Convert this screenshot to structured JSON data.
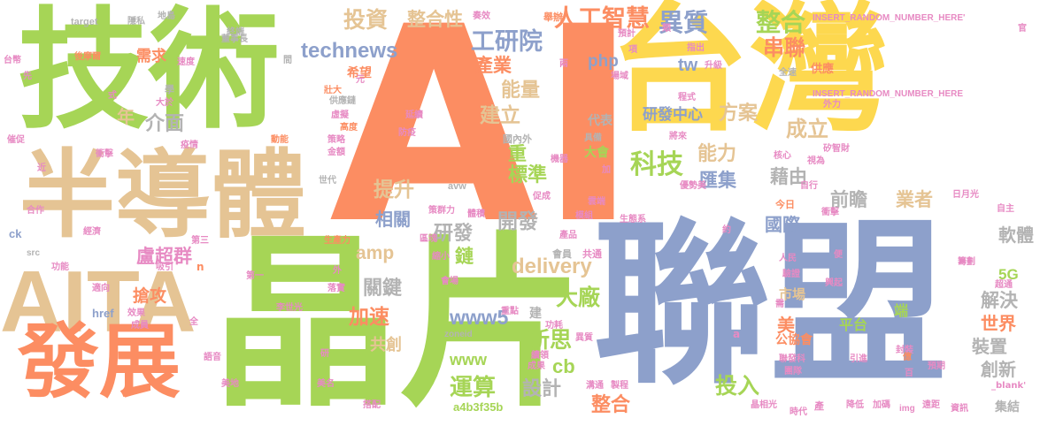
{
  "colors": {
    "green": "#a6d556",
    "orange": "#fc8d62",
    "yellow": "#fdd84f",
    "blue": "#8da0cb",
    "tan": "#e5c494",
    "pink": "#e78ac3",
    "grey": "#b3b3b3"
  },
  "words": [
    {
      "text": "AI",
      "color": "orange"
    },
    {
      "text": "台灣",
      "color": "yellow"
    },
    {
      "text": "聯盟",
      "color": "blue"
    },
    {
      "text": "技術",
      "color": "green"
    },
    {
      "text": "晶片",
      "color": "green"
    },
    {
      "text": "半導體",
      "color": "tan"
    },
    {
      "text": "AITA",
      "color": "tan"
    },
    {
      "text": "發展",
      "color": "orange"
    },
    {
      "text": "投資",
      "color": "tan"
    },
    {
      "text": "整合性",
      "color": "tan"
    },
    {
      "text": "人工智慧",
      "color": "orange"
    },
    {
      "text": "異質",
      "color": "blue"
    },
    {
      "text": "整合",
      "color": "green"
    },
    {
      "text": "工研院",
      "color": "blue"
    },
    {
      "text": "串聯",
      "color": "orange"
    },
    {
      "text": "technews",
      "color": "blue"
    },
    {
      "text": "需求",
      "color": "orange"
    },
    {
      "text": "產業",
      "color": "orange"
    },
    {
      "text": "php",
      "color": "blue"
    },
    {
      "text": "tw",
      "color": "blue"
    },
    {
      "text": "能量",
      "color": "tan"
    },
    {
      "text": "建立",
      "color": "tan"
    },
    {
      "text": "研發中心",
      "color": "blue"
    },
    {
      "text": "方案",
      "color": "tan"
    },
    {
      "text": "科技",
      "color": "green"
    },
    {
      "text": "能力",
      "color": "tan"
    },
    {
      "text": "匯集",
      "color": "blue"
    },
    {
      "text": "成立",
      "color": "tan"
    },
    {
      "text": "藉由",
      "color": "grey"
    },
    {
      "text": "介面",
      "color": "grey"
    },
    {
      "text": "年",
      "color": "tan"
    },
    {
      "text": "提升",
      "color": "tan"
    },
    {
      "text": "標準",
      "color": "green"
    },
    {
      "text": "重",
      "color": "green"
    },
    {
      "text": "前瞻",
      "color": "grey"
    },
    {
      "text": "業者",
      "color": "tan"
    },
    {
      "text": "國際",
      "color": "blue"
    },
    {
      "text": "相關",
      "color": "blue"
    },
    {
      "text": "研發",
      "color": "grey"
    },
    {
      "text": "開發",
      "color": "grey"
    },
    {
      "text": "鏈",
      "color": "green"
    },
    {
      "text": "amp",
      "color": "tan"
    },
    {
      "text": "delivery",
      "color": "tan"
    },
    {
      "text": "盧超群",
      "color": "pink"
    },
    {
      "text": "搶攻",
      "color": "orange"
    },
    {
      "text": "關鍵",
      "color": "grey"
    },
    {
      "text": "大廠",
      "color": "green"
    },
    {
      "text": "加速",
      "color": "orange"
    },
    {
      "text": "www5",
      "color": "blue"
    },
    {
      "text": "新思",
      "color": "green"
    },
    {
      "text": "美",
      "color": "orange"
    },
    {
      "text": "軟體",
      "color": "grey"
    },
    {
      "text": "5G",
      "color": "green"
    },
    {
      "text": "解決",
      "color": "grey"
    },
    {
      "text": "世界",
      "color": "orange"
    },
    {
      "text": "裝置",
      "color": "grey"
    },
    {
      "text": "創新",
      "color": "grey"
    },
    {
      "text": "共創",
      "color": "tan"
    },
    {
      "text": "www",
      "color": "green"
    },
    {
      "text": "運算",
      "color": "green"
    },
    {
      "text": "投入",
      "color": "green"
    },
    {
      "text": "設計",
      "color": "grey"
    },
    {
      "text": "整合",
      "color": "orange"
    },
    {
      "text": "cb",
      "color": "green"
    },
    {
      "text": "a4b3f35b",
      "color": "green"
    },
    {
      "text": "市場",
      "color": "tan"
    },
    {
      "text": "公協會",
      "color": "orange"
    },
    {
      "text": "平台",
      "color": "green"
    },
    {
      "text": "端",
      "color": "green"
    },
    {
      "text": "集結",
      "color": "grey"
    },
    {
      "text": "建",
      "color": "grey"
    },
    {
      "text": "希望",
      "color": "orange"
    },
    {
      "text": "壯大",
      "color": "orange"
    },
    {
      "text": "INSERT_RANDOM_NUMBER_HERE'",
      "color": "pink"
    },
    {
      "text": "INSERT_RANDOM_NUMBER_HERE",
      "color": "pink"
    },
    {
      "text": "學",
      "color": "grey"
    },
    {
      "text": "target",
      "color": "grey"
    },
    {
      "text": "隱私",
      "color": "grey"
    },
    {
      "text": "地島",
      "color": "grey"
    },
    {
      "text": "後摩爾",
      "color": "orange"
    },
    {
      "text": "台幣",
      "color": "pink"
    },
    {
      "text": "速度",
      "color": "pink"
    },
    {
      "text": "先",
      "color": "pink"
    },
    {
      "text": "大於",
      "color": "pink"
    },
    {
      "text": "式",
      "color": "pink"
    },
    {
      "text": "催促",
      "color": "pink"
    },
    {
      "text": "疫情",
      "color": "pink"
    },
    {
      "text": "衝擊",
      "color": "pink"
    },
    {
      "text": "近",
      "color": "pink"
    },
    {
      "text": "合作",
      "color": "pink"
    },
    {
      "text": "經濟",
      "color": "pink"
    },
    {
      "text": "ck",
      "color": "blue"
    },
    {
      "text": "src",
      "color": "grey"
    },
    {
      "text": "功能",
      "color": "pink"
    },
    {
      "text": "吸引",
      "color": "pink"
    },
    {
      "text": "第三",
      "color": "pink"
    },
    {
      "text": "n",
      "color": "orange"
    },
    {
      "text": "適向",
      "color": "pink"
    },
    {
      "text": "效果",
      "color": "pink"
    },
    {
      "text": "href",
      "color": "blue"
    },
    {
      "text": "成員",
      "color": "pink"
    },
    {
      "text": "全",
      "color": "pink"
    },
    {
      "text": "語音",
      "color": "pink"
    },
    {
      "text": "美地",
      "color": "pink"
    },
    {
      "text": "美名",
      "color": "pink"
    },
    {
      "text": "搭配",
      "color": "pink"
    },
    {
      "text": "研",
      "color": "pink"
    },
    {
      "text": "董事長",
      "color": "grey"
    },
    {
      "text": "終端",
      "color": "grey"
    },
    {
      "text": "間",
      "color": "grey"
    },
    {
      "text": "元",
      "color": "pink"
    },
    {
      "text": "供應鏈",
      "color": "grey"
    },
    {
      "text": "高度",
      "color": "orange"
    },
    {
      "text": "動能",
      "color": "orange"
    },
    {
      "text": "策略",
      "color": "pink"
    },
    {
      "text": "金額",
      "color": "pink"
    },
    {
      "text": "虛擬",
      "color": "pink"
    },
    {
      "text": "世代",
      "color": "grey"
    },
    {
      "text": "生產力",
      "color": "orange"
    },
    {
      "text": "第一",
      "color": "pink"
    },
    {
      "text": "外",
      "color": "pink"
    },
    {
      "text": "落實",
      "color": "pink"
    },
    {
      "text": "李世光",
      "color": "pink"
    },
    {
      "text": "延續",
      "color": "pink"
    },
    {
      "text": "防疫",
      "color": "pink"
    },
    {
      "text": "奏效",
      "color": "pink"
    },
    {
      "text": "舉辦",
      "color": "orange"
    },
    {
      "text": "兩",
      "color": "pink"
    },
    {
      "text": "國內外",
      "color": "grey"
    },
    {
      "text": "縮小",
      "color": "pink"
    },
    {
      "text": "會場",
      "color": "pink"
    },
    {
      "text": "重點",
      "color": "pink"
    },
    {
      "text": "zoneid",
      "color": "grey"
    },
    {
      "text": "功耗",
      "color": "pink"
    },
    {
      "text": "異質",
      "color": "pink"
    },
    {
      "text": "續領",
      "color": "pink"
    },
    {
      "text": "成果",
      "color": "pink"
    },
    {
      "text": "avw",
      "color": "grey"
    },
    {
      "text": "策群力",
      "color": "pink"
    },
    {
      "text": "區塊",
      "color": "pink"
    },
    {
      "text": "體積",
      "color": "pink"
    },
    {
      "text": "大會",
      "color": "green"
    },
    {
      "text": "代表",
      "color": "grey"
    },
    {
      "text": "具備",
      "color": "grey"
    },
    {
      "text": "將來",
      "color": "pink"
    },
    {
      "text": "機器",
      "color": "pink"
    },
    {
      "text": "加",
      "color": "pink"
    },
    {
      "text": "促成",
      "color": "pink"
    },
    {
      "text": "產品",
      "color": "pink"
    },
    {
      "text": "雲端",
      "color": "pink"
    },
    {
      "text": "模組",
      "color": "pink"
    },
    {
      "text": "生態系",
      "color": "pink"
    },
    {
      "text": "會員",
      "color": "grey"
    },
    {
      "text": "共通",
      "color": "pink"
    },
    {
      "text": "溝通",
      "color": "pink"
    },
    {
      "text": "製程",
      "color": "pink"
    },
    {
      "text": "預計",
      "color": "pink"
    },
    {
      "text": "類",
      "color": "pink"
    },
    {
      "text": "項",
      "color": "pink"
    },
    {
      "text": "指出",
      "color": "pink"
    },
    {
      "text": "升級",
      "color": "pink"
    },
    {
      "text": "全速",
      "color": "grey"
    },
    {
      "text": "程式",
      "color": "pink"
    },
    {
      "text": "供應",
      "color": "orange"
    },
    {
      "text": "外力",
      "color": "pink"
    },
    {
      "text": "矽智財",
      "color": "pink"
    },
    {
      "text": "視為",
      "color": "pink"
    },
    {
      "text": "核心",
      "color": "pink"
    },
    {
      "text": "自行",
      "color": "pink"
    },
    {
      "text": "優勢美",
      "color": "pink"
    },
    {
      "text": "今日",
      "color": "orange"
    },
    {
      "text": "衝擊",
      "color": "pink"
    },
    {
      "text": "日月光",
      "color": "pink"
    },
    {
      "text": "自主",
      "color": "pink"
    },
    {
      "text": "約",
      "color": "pink"
    },
    {
      "text": "人民",
      "color": "pink"
    },
    {
      "text": "驗證",
      "color": "pink"
    },
    {
      "text": "便",
      "color": "pink"
    },
    {
      "text": "興起",
      "color": "pink"
    },
    {
      "text": "籌劃",
      "color": "pink"
    },
    {
      "text": "超通",
      "color": "pink"
    },
    {
      "text": "需",
      "color": "pink"
    },
    {
      "text": "封裝",
      "color": "pink"
    },
    {
      "text": "引進",
      "color": "pink"
    },
    {
      "text": "億",
      "color": "orange"
    },
    {
      "text": "百",
      "color": "pink"
    },
    {
      "text": "團隊",
      "color": "pink"
    },
    {
      "text": "預期",
      "color": "pink"
    },
    {
      "text": "聯發科",
      "color": "pink"
    },
    {
      "text": "晶相光",
      "color": "pink"
    },
    {
      "text": "時代",
      "color": "pink"
    },
    {
      "text": "產",
      "color": "pink"
    },
    {
      "text": "降低",
      "color": "pink"
    },
    {
      "text": "加碼",
      "color": "pink"
    },
    {
      "text": "img",
      "color": "pink"
    },
    {
      "text": "遠距",
      "color": "pink"
    },
    {
      "text": "資訊",
      "color": "pink"
    },
    {
      "text": "a",
      "color": "pink"
    },
    {
      "text": "_blank'",
      "color": "pink"
    },
    {
      "text": "官",
      "color": "pink"
    },
    {
      "text": "場域",
      "color": "pink"
    }
  ]
}
